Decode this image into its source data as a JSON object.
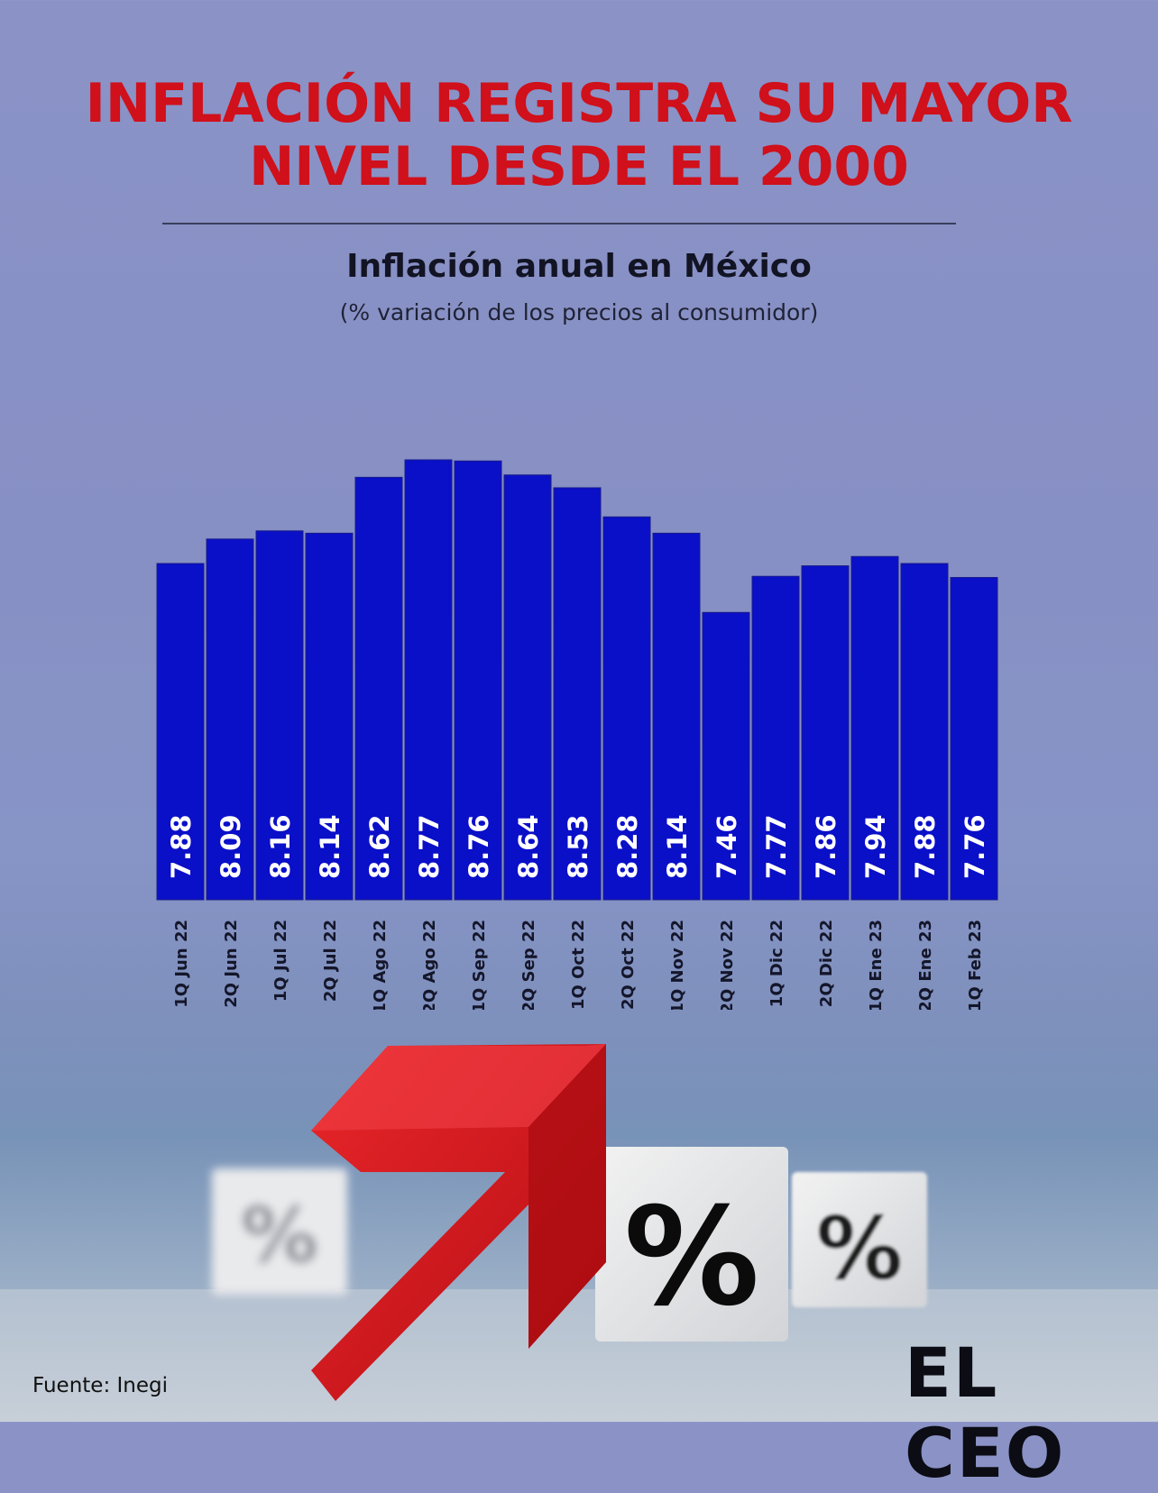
{
  "header": {
    "title_line1": "INFLACIÓN REGISTRA SU MAYOR",
    "title_line2": "NIVEL DESDE EL 2000"
  },
  "chart_data": {
    "type": "bar",
    "title": "Inflación anual en México",
    "subtitle": "(% variación de los precios al consumidor)",
    "categories": [
      "1Q Jun 22",
      "2Q Jun 22",
      "1Q Jul 22",
      "2Q Jul 22",
      "1Q Ago 22",
      "2Q Ago 22",
      "1Q Sep 22",
      "2Q Sep 22",
      "1Q Oct 22",
      "2Q Oct 22",
      "1Q Nov 22",
      "2Q Nov 22",
      "1Q Dic 22",
      "2Q Dic 22",
      "1Q Ene 23",
      "2Q Ene 23",
      "1Q Feb 23"
    ],
    "values": [
      7.88,
      8.09,
      8.16,
      8.14,
      8.62,
      8.77,
      8.76,
      8.64,
      8.53,
      8.28,
      8.14,
      7.46,
      7.77,
      7.86,
      7.94,
      7.88,
      7.76
    ],
    "value_labels": [
      "7.88",
      "8.09",
      "8.16",
      "8.14",
      "8.62",
      "8.77",
      "8.76",
      "8.64",
      "8.53",
      "8.28",
      "8.14",
      "7.46",
      "7.77",
      "7.86",
      "7.94",
      "7.88",
      "7.76"
    ],
    "bar_color": "#0a0fc8",
    "grid": false,
    "legend": "none"
  },
  "footer": {
    "source": "Fuente: Inegi",
    "brand": "EL CEO"
  },
  "decor": {
    "percent_glyph": "%",
    "arrow_color": "#d4141a",
    "title_color": "#d0101a"
  }
}
